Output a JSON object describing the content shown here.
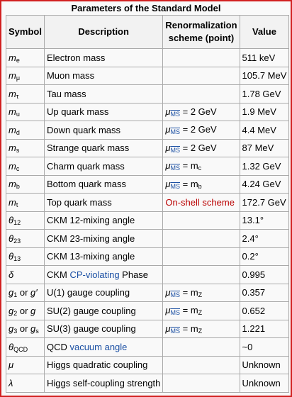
{
  "table": {
    "caption": "Parameters of the Standard Model",
    "headers": {
      "symbol": "Symbol",
      "description": "Description",
      "scheme": "Renormalization scheme (point)",
      "value": "Value"
    },
    "rows": [
      {
        "sym": "m",
        "sub": "e",
        "desc": "Electron mass",
        "scheme": "",
        "value": "511 keV"
      },
      {
        "sym": "m",
        "sub": "μ",
        "desc": "Muon mass",
        "scheme": "",
        "value": "105.7 MeV"
      },
      {
        "sym": "m",
        "sub": "τ",
        "desc": "Tau mass",
        "scheme": "",
        "value": "1.78 GeV"
      },
      {
        "sym": "m",
        "sub": "u",
        "desc": "Up quark mass",
        "scheme_mu": "μ",
        "scheme_ms": "MS",
        "scheme_rest": " = 2 GeV",
        "value": "1.9 MeV"
      },
      {
        "sym": "m",
        "sub": "d",
        "desc": "Down quark mass",
        "scheme_mu": "μ",
        "scheme_ms": "MS",
        "scheme_rest": " = 2 GeV",
        "value": "4.4 MeV"
      },
      {
        "sym": "m",
        "sub": "s",
        "desc": "Strange quark mass",
        "scheme_mu": "μ",
        "scheme_ms": "MS",
        "scheme_rest": " = 2 GeV",
        "value": "87 MeV"
      },
      {
        "sym": "m",
        "sub": "c",
        "desc": "Charm quark mass",
        "scheme_mu": "μ",
        "scheme_ms": "MS",
        "scheme_rest": " = m",
        "scheme_rest_sub": "c",
        "value": "1.32 GeV"
      },
      {
        "sym": "m",
        "sub": "b",
        "desc": "Bottom quark mass",
        "scheme_mu": "μ",
        "scheme_ms": "MS",
        "scheme_rest": " = m",
        "scheme_rest_sub": "b",
        "value": "4.24 GeV"
      },
      {
        "sym": "m",
        "sub": "t",
        "desc": "Top quark mass",
        "scheme_text": "On-shell scheme",
        "value": "172.7 GeV"
      },
      {
        "sym": "θ",
        "sub": "12",
        "desc": "CKM 12-mixing angle",
        "scheme": "",
        "value": "13.1°"
      },
      {
        "sym": "θ",
        "sub": "23",
        "desc": "CKM 23-mixing angle",
        "scheme": "",
        "value": "2.4°"
      },
      {
        "sym": "θ",
        "sub": "13",
        "desc": "CKM 13-mixing angle",
        "scheme": "",
        "value": "0.2°"
      },
      {
        "sym": "δ",
        "sub": "",
        "desc_pre": "CKM ",
        "desc_link": "CP-violating",
        "desc_post": " Phase",
        "scheme": "",
        "value": "0.995"
      },
      {
        "sym": "g",
        "sub": "1",
        "sym_or": " or ",
        "sym2": "g′",
        "sym2_sub": "",
        "desc": "U(1) gauge coupling",
        "scheme_mu": "μ",
        "scheme_ms": "MS",
        "scheme_rest": " = m",
        "scheme_rest_sub": "Z",
        "value": "0.357"
      },
      {
        "sym": "g",
        "sub": "2",
        "sym_or": " or ",
        "sym2": "g",
        "sym2_sub": "",
        "desc": "SU(2) gauge coupling",
        "scheme_mu": "μ",
        "scheme_ms": "MS",
        "scheme_rest": " = m",
        "scheme_rest_sub": "Z",
        "value": "0.652"
      },
      {
        "sym": "g",
        "sub": "3",
        "sym_or": " or ",
        "sym2": "g",
        "sym2_sub": "s",
        "desc": "SU(3) gauge coupling",
        "scheme_mu": "μ",
        "scheme_ms": "MS",
        "scheme_rest": " = m",
        "scheme_rest_sub": "Z",
        "value": "1.221"
      },
      {
        "sym": "θ",
        "sub": "QCD",
        "desc_pre": "QCD ",
        "desc_link": "vacuum angle",
        "desc_post": "",
        "scheme": "",
        "value": "~0"
      },
      {
        "sym": "μ",
        "sub": "",
        "desc": "Higgs quadratic coupling",
        "scheme": "",
        "value": "Unknown"
      },
      {
        "sym": "λ",
        "sub": "",
        "desc": "Higgs self-coupling strength",
        "scheme": "",
        "value": "Unknown"
      }
    ]
  },
  "colors": {
    "frame_border": "#d22020",
    "link": "#1a4fa3",
    "on_shell": "#ba0000",
    "cell_border": "#aaaaaa"
  }
}
